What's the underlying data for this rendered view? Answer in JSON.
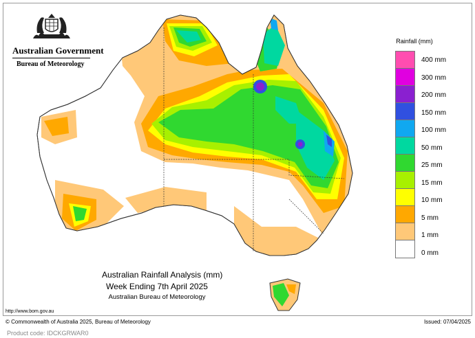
{
  "header": {
    "government": "Australian Government",
    "bureau": "Bureau of Meteorology"
  },
  "legend": {
    "title": "Rainfall (mm)",
    "items": [
      {
        "label": "400 mm",
        "color": "#ff4db0"
      },
      {
        "label": "300 mm",
        "color": "#e000e0"
      },
      {
        "label": "200 mm",
        "color": "#8a20d0"
      },
      {
        "label": "150 mm",
        "color": "#3050e0"
      },
      {
        "label": "100 mm",
        "color": "#10a8f0"
      },
      {
        "label": "50 mm",
        "color": "#00d8a0"
      },
      {
        "label": "25 mm",
        "color": "#30d830"
      },
      {
        "label": "15 mm",
        "color": "#a8f000"
      },
      {
        "label": "10 mm",
        "color": "#ffff00"
      },
      {
        "label": "5 mm",
        "color": "#ffa800"
      },
      {
        "label": "1 mm",
        "color": "#ffc878"
      },
      {
        "label": "0 mm",
        "color": "#ffffff"
      }
    ]
  },
  "map_caption": {
    "title": "Australian Rainfall Analysis (mm)",
    "subtitle": "Week Ending 7th April 2025",
    "source": "Australian Bureau of Meteorology"
  },
  "footer": {
    "url": "http://www.bom.gov.au",
    "copyright": "© Commonwealth of Australia 2025, Bureau of Meteorology",
    "issued": "Issued: 07/04/2025",
    "product_code": "Product code: IDCKGRWAR0"
  }
}
